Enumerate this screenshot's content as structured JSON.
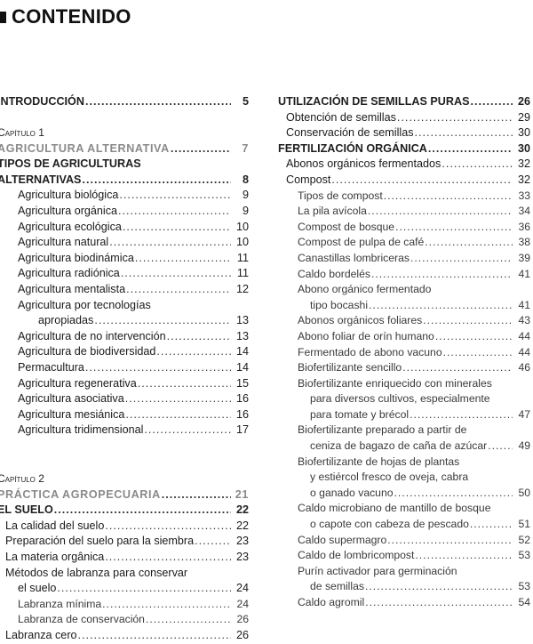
{
  "header": {
    "title": "CONTENIDO"
  },
  "left_column": {
    "sections": [
      {
        "entries": [
          {
            "style": "head",
            "level": 0,
            "lines": [
              "INTRODUCCIÓN"
            ],
            "page": "5"
          }
        ]
      },
      {
        "entries": [
          {
            "style": "chap",
            "level": 0,
            "lines": [
              "Capítulo 1"
            ],
            "page": ""
          },
          {
            "style": "gray",
            "level": 0,
            "lines": [
              "AGRICULTURA ALTERNATIVA"
            ],
            "page": "7"
          },
          {
            "style": "head",
            "level": 0,
            "lines": [
              "TIPOS DE AGRICULTURAS",
              "ALTERNATIVAS"
            ],
            "page": "8"
          },
          {
            "style": "med",
            "level": 2,
            "lines": [
              "Agricultura biológica"
            ],
            "page": "9"
          },
          {
            "style": "med",
            "level": 2,
            "lines": [
              "Agricultura orgánica"
            ],
            "page": "9"
          },
          {
            "style": "med",
            "level": 2,
            "lines": [
              "Agricultura ecológica"
            ],
            "page": "10"
          },
          {
            "style": "med",
            "level": 2,
            "lines": [
              "Agricultura natural"
            ],
            "page": "10"
          },
          {
            "style": "med",
            "level": 2,
            "lines": [
              "Agricultura biodinámica"
            ],
            "page": "11"
          },
          {
            "style": "med",
            "level": 2,
            "lines": [
              "Agricultura radiónica"
            ],
            "page": "11"
          },
          {
            "style": "med",
            "level": 2,
            "lines": [
              "Agricultura mentalista"
            ],
            "page": "12"
          },
          {
            "style": "med",
            "level": 2,
            "lines": [
              "Agricultura por tecnologías",
              "apropiadas"
            ],
            "page": "13"
          },
          {
            "style": "med",
            "level": 2,
            "lines": [
              "Agricultura de no intervención"
            ],
            "page": "13"
          },
          {
            "style": "med",
            "level": 2,
            "lines": [
              "Agricultura de biodiversidad"
            ],
            "page": "14"
          },
          {
            "style": "med",
            "level": 2,
            "lines": [
              "Permacultura"
            ],
            "page": "14"
          },
          {
            "style": "med",
            "level": 2,
            "lines": [
              "Agricultura regenerativa"
            ],
            "page": "15"
          },
          {
            "style": "med",
            "level": 2,
            "lines": [
              "Agricultura asociativa"
            ],
            "page": "16"
          },
          {
            "style": "med",
            "level": 2,
            "lines": [
              "Agricultura mesiánica"
            ],
            "page": "16"
          },
          {
            "style": "med",
            "level": 2,
            "lines": [
              "Agricultura tridimensional"
            ],
            "page": "17"
          }
        ]
      },
      {
        "entries": [
          {
            "style": "chap",
            "level": 0,
            "lines": [
              "Capítulo 2"
            ],
            "page": ""
          },
          {
            "style": "gray",
            "level": 0,
            "lines": [
              "PRÁCTICA AGROPECUARIA"
            ],
            "page": "21"
          },
          {
            "style": "head",
            "level": 0,
            "lines": [
              "EL SUELO"
            ],
            "page": "22"
          },
          {
            "style": "med",
            "level": 1,
            "lines": [
              "La calidad del suelo"
            ],
            "page": "22"
          },
          {
            "style": "med",
            "level": 1,
            "lines": [
              "Preparación del suelo para la siembra"
            ],
            "page": "23"
          },
          {
            "style": "med",
            "level": 1,
            "lines": [
              "La materia orgânica"
            ],
            "page": "23"
          },
          {
            "style": "med",
            "level": 1,
            "lines": [
              "Métodos de labranza para conservar",
              "el suelo"
            ],
            "page": "24"
          },
          {
            "style": "light",
            "level": 2,
            "lines": [
              "Labranza mínima"
            ],
            "page": "24"
          },
          {
            "style": "light",
            "level": 2,
            "lines": [
              "Labranza de conservación"
            ],
            "page": "26"
          },
          {
            "style": "med",
            "level": 1,
            "lines": [
              "Labranza cero"
            ],
            "page": "26"
          }
        ]
      }
    ]
  },
  "right_column": {
    "sections": [
      {
        "entries": [
          {
            "style": "head",
            "level": 0,
            "lines": [
              "UTILIZACIÓN DE SEMILLAS PURAS"
            ],
            "page": "26"
          },
          {
            "style": "med",
            "level": 1,
            "lines": [
              "Obtención de semillas"
            ],
            "page": "29"
          },
          {
            "style": "med",
            "level": 1,
            "lines": [
              "Conservación de semillas"
            ],
            "page": "30"
          },
          {
            "style": "head",
            "level": 0,
            "lines": [
              "FERTILIZACIÓN ORGÁNICA"
            ],
            "page": "30"
          },
          {
            "style": "med",
            "level": 1,
            "lines": [
              "Abonos orgánicos fermentados"
            ],
            "page": "32"
          },
          {
            "style": "med",
            "level": 1,
            "lines": [
              "Compost"
            ],
            "page": "32"
          },
          {
            "style": "light",
            "level": 2,
            "lines": [
              "Tipos de compost"
            ],
            "page": "33"
          },
          {
            "style": "light",
            "level": 2,
            "lines": [
              "La pila avícola"
            ],
            "page": "34"
          },
          {
            "style": "light",
            "level": 2,
            "lines": [
              "Compost de bosque"
            ],
            "page": "36"
          },
          {
            "style": "light",
            "level": 2,
            "lines": [
              "Compost de pulpa de café"
            ],
            "page": "38"
          },
          {
            "style": "light",
            "level": 2,
            "lines": [
              "Canastillas lombriceras"
            ],
            "page": "39"
          },
          {
            "style": "light",
            "level": 2,
            "lines": [
              "Caldo bordelés"
            ],
            "page": "41"
          },
          {
            "style": "light",
            "level": 2,
            "lines": [
              "Abono orgánico fermentado",
              "tipo bocashi"
            ],
            "page": "41"
          },
          {
            "style": "light",
            "level": 2,
            "lines": [
              "Abonos orgánicos foliares"
            ],
            "page": "43"
          },
          {
            "style": "light",
            "level": 2,
            "lines": [
              "Abono foliar de orín humano"
            ],
            "page": "44"
          },
          {
            "style": "light",
            "level": 2,
            "lines": [
              "Fermentado de abono vacuno"
            ],
            "page": "44"
          },
          {
            "style": "light",
            "level": 2,
            "lines": [
              "Biofertilizante sencillo"
            ],
            "page": "46"
          },
          {
            "style": "light",
            "level": 2,
            "lines": [
              "Biofertilizante enriquecido con minerales",
              "para diversos cultivos, especialmente",
              "para tomate y brécol"
            ],
            "page": "47"
          },
          {
            "style": "light",
            "level": 2,
            "lines": [
              "Biofertilizante preparado a partir de",
              "ceniza de bagazo de caña de azúcar"
            ],
            "page": "49"
          },
          {
            "style": "light",
            "level": 2,
            "lines": [
              "Biofertilizante de hojas de plantas",
              "y estiércol fresco de oveja, cabra",
              "o ganado vacuno"
            ],
            "page": "50"
          },
          {
            "style": "light",
            "level": 2,
            "lines": [
              "Caldo microbiano de mantillo de bosque",
              "o capote con cabeza de pescado"
            ],
            "page": "51"
          },
          {
            "style": "light",
            "level": 2,
            "lines": [
              "Caldo supermagro"
            ],
            "page": "52"
          },
          {
            "style": "light",
            "level": 2,
            "lines": [
              "Caldo de lombricompost"
            ],
            "page": "53"
          },
          {
            "style": "light",
            "level": 2,
            "lines": [
              "Purín activador para germinación",
              "de semillas"
            ],
            "page": "53"
          },
          {
            "style": "light",
            "level": 2,
            "lines": [
              "Caldo agromil"
            ],
            "page": "54"
          }
        ]
      }
    ]
  }
}
